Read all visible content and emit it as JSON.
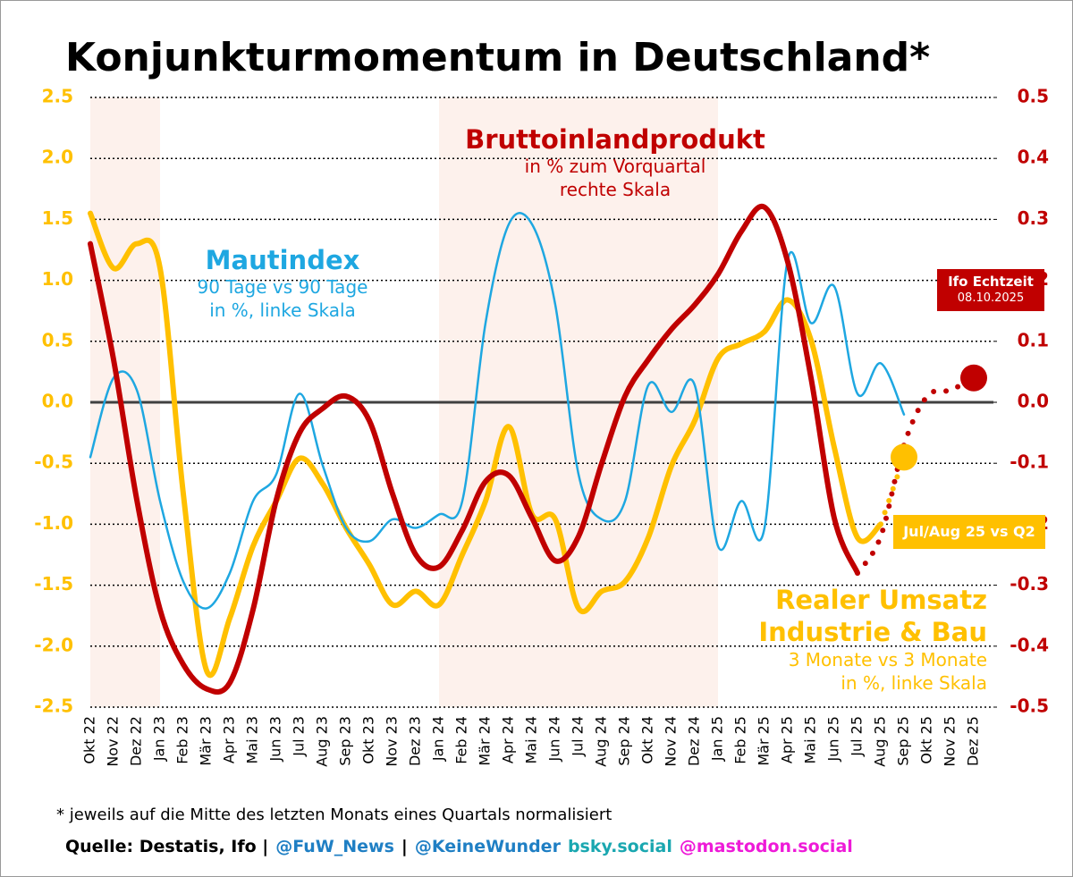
{
  "chart_data": {
    "type": "line",
    "title": "Konjunkturmomentum in Deutschland*",
    "categories": [
      "Okt 22",
      "Nov 22",
      "Dez 22",
      "Jan 23",
      "Feb 23",
      "Mär 23",
      "Apr 23",
      "Mai 23",
      "Jun 23",
      "Jul 23",
      "Aug 23",
      "Sep 23",
      "Okt 23",
      "Nov 23",
      "Dez 23",
      "Jan 24",
      "Feb 24",
      "Mär 24",
      "Apr 24",
      "Mai 24",
      "Jun 24",
      "Jul 24",
      "Aug 24",
      "Sep 24",
      "Okt 24",
      "Nov 24",
      "Dez 24",
      "Jan 25",
      "Feb 25",
      "Mär 25",
      "Apr 25",
      "Mai 25",
      "Jun 25",
      "Jul 25",
      "Aug 25",
      "Sep 25",
      "Okt 25",
      "Nov 25",
      "Dez 25"
    ],
    "ylim": [
      -2.5,
      2.5
    ],
    "yticks": [
      2.5,
      {
        "value": 2,
        "label": "2.0"
      },
      1.5,
      {
        "value": 1,
        "label": "1.0"
      },
      0.5,
      {
        "value": 0,
        "label": "0.0"
      },
      -0.5,
      {
        "value": -1,
        "label": "-1.0"
      },
      -1.5,
      {
        "value": -2,
        "label": "-2.0"
      },
      -2.5
    ],
    "y2lim": [
      -0.5,
      0.5
    ],
    "y2ticks": [
      0.5,
      0.4,
      0.3,
      0.2,
      0.1,
      {
        "value": 0,
        "label": "0.0"
      },
      -0.1,
      -0.2,
      -0.3,
      -0.4,
      -0.5
    ],
    "grid": true,
    "series": [
      {
        "name": "Mautindex",
        "description": [
          "90 Tage vs 90 Tage",
          "in %, linke Skala"
        ],
        "color": "#1ea7e1",
        "style": "solid",
        "values": [
          -0.45,
          0.2,
          0.1,
          -0.81,
          -1.47,
          -1.69,
          -1.4,
          -0.81,
          -0.59,
          0.07,
          -0.52,
          -1.03,
          -1.14,
          -0.96,
          -1.03,
          -0.92,
          -0.81,
          0.65,
          1.46,
          1.46,
          0.8,
          -0.59,
          -0.96,
          -0.81,
          0.14,
          -0.08,
          0.14,
          -1.18,
          -0.81,
          -1.03,
          1.17,
          0.65,
          0.95,
          0.07,
          0.32,
          -0.1,
          null,
          null,
          null
        ]
      },
      {
        "name": "Bruttoinlandprodukt",
        "description": [
          "in % zum Vorquartal",
          "rechte Skala"
        ],
        "color": "#c00000",
        "axis": "y2",
        "style": "solid",
        "values": [
          0.26,
          0.07,
          -0.16,
          -0.34,
          -0.43,
          -0.47,
          -0.46,
          -0.34,
          -0.16,
          -0.05,
          -0.01,
          0.01,
          -0.03,
          -0.15,
          -0.25,
          -0.27,
          -0.21,
          -0.13,
          -0.12,
          -0.19,
          -0.26,
          -0.22,
          -0.1,
          0.01,
          0.07,
          0.12,
          0.16,
          0.21,
          0.28,
          0.32,
          0.23,
          0.04,
          -0.19,
          -0.28,
          null,
          null,
          null,
          null,
          null
        ]
      },
      {
        "name": "Realer Umsatz Industrie & Bau",
        "description": [
          "3 Monate vs 3 Monate",
          "in %, linke Skala"
        ],
        "color": "#ffc000",
        "style": "solid",
        "values": [
          1.55,
          1.1,
          1.3,
          1.1,
          -0.75,
          -2.2,
          -1.77,
          -1.18,
          -0.81,
          -0.46,
          -0.67,
          -1.03,
          -1.33,
          -1.66,
          -1.55,
          -1.66,
          -1.25,
          -0.81,
          -0.2,
          -0.92,
          -0.96,
          -1.69,
          -1.55,
          -1.47,
          -1.11,
          -0.52,
          -0.15,
          0.36,
          0.48,
          0.58,
          0.84,
          0.51,
          -0.37,
          -1.11,
          -1.0,
          null,
          null,
          null,
          null
        ]
      },
      {
        "name": "Ifo Echtzeit",
        "date": "08.10.2025",
        "color": "#c00000",
        "axis": "y2",
        "style": "dotted",
        "values": [
          null,
          null,
          null,
          null,
          null,
          null,
          null,
          null,
          null,
          null,
          null,
          null,
          null,
          null,
          null,
          null,
          null,
          null,
          null,
          null,
          null,
          null,
          null,
          null,
          null,
          null,
          null,
          null,
          null,
          null,
          null,
          null,
          null,
          -0.28,
          -0.22,
          -0.07,
          0.01,
          0.02,
          0.04
        ]
      },
      {
        "name": "Jul/Aug 25 vs Q2",
        "color": "#ffc000",
        "style": "dotted",
        "values": [
          null,
          null,
          null,
          null,
          null,
          null,
          null,
          null,
          null,
          null,
          null,
          null,
          null,
          null,
          null,
          null,
          null,
          null,
          null,
          null,
          null,
          null,
          null,
          null,
          null,
          null,
          null,
          null,
          null,
          null,
          null,
          null,
          null,
          null,
          -1.0,
          -0.45,
          null,
          null,
          null
        ]
      }
    ],
    "footnote": "* jeweils auf die Mitte des letzten Monats eines Quartals normalisiert",
    "source": [
      {
        "text": "Quelle: Destatis, Ifo |",
        "color": "#000000"
      },
      {
        "text": "@FuW_News",
        "color": "#1f7fc4"
      },
      {
        "text": "|",
        "color": "#000000"
      },
      {
        "text": "@KeineWunder",
        "color": "#1f7fc4"
      },
      {
        "text": "bsky.social",
        "color": "#1aa7b0"
      },
      {
        "text": "@mastodon.social",
        "color": "#ee1ad8"
      }
    ]
  }
}
